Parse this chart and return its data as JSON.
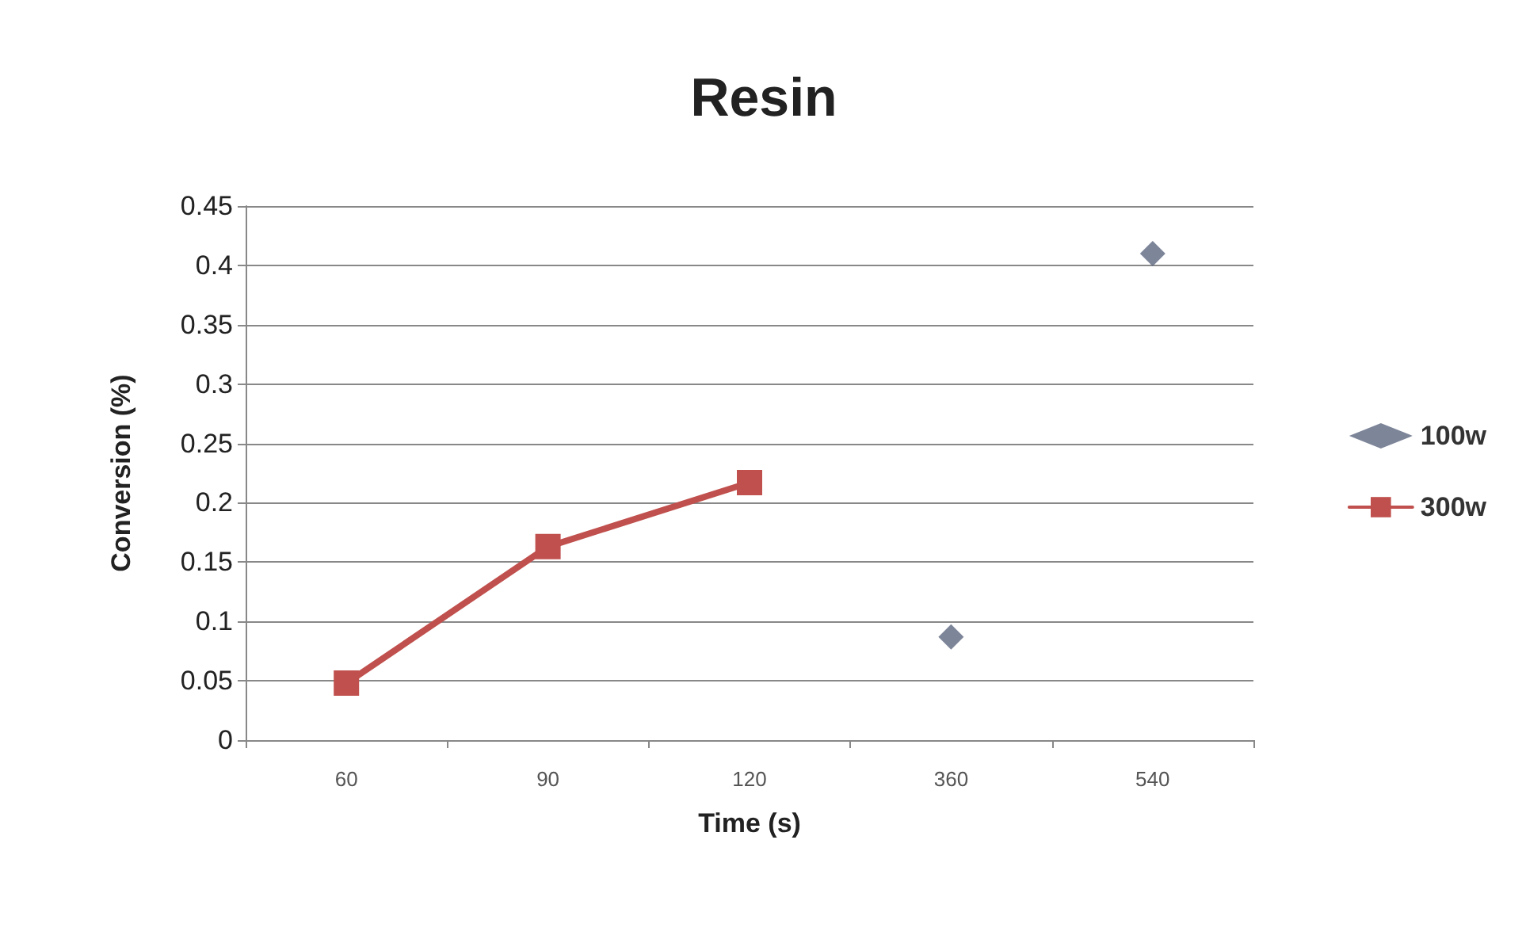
{
  "chart_data": {
    "type": "line",
    "title": "Resin",
    "xlabel": "Time (s)",
    "ylabel": "Conversion (%)",
    "categories": [
      "60",
      "90",
      "120",
      "360",
      "540"
    ],
    "series": [
      {
        "name": "100w",
        "type": "scatter",
        "marker": "diamond",
        "color": "#5c6680",
        "values": [
          null,
          null,
          null,
          0.087,
          0.41
        ]
      },
      {
        "name": "300w",
        "marker": "square",
        "color": "#c0504d",
        "values": [
          0.048,
          0.163,
          0.217,
          null,
          null
        ]
      }
    ],
    "ylim": [
      0,
      0.45
    ],
    "yticks": [
      0,
      0.05,
      0.1,
      0.15,
      0.2,
      0.25,
      0.3,
      0.35,
      0.4,
      0.45
    ],
    "grid": "y",
    "legend": "right"
  }
}
